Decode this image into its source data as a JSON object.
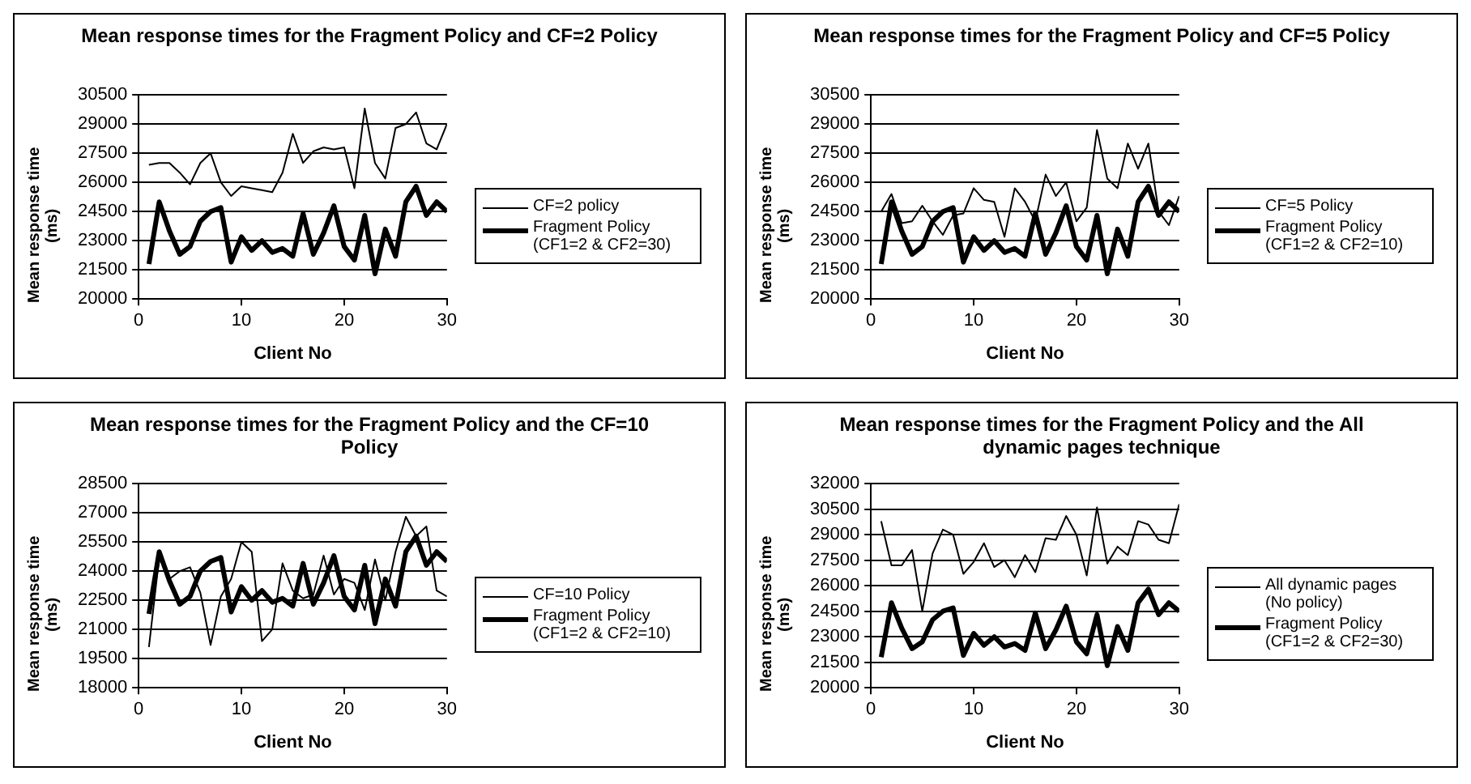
{
  "chart_data": [
    {
      "type": "line",
      "title": "Mean response times for the Fragment Policy and CF=2 Policy",
      "xlabel": "Client No",
      "ylabel": "Mean response time (ms)",
      "x": [
        1,
        2,
        3,
        4,
        5,
        6,
        7,
        8,
        9,
        10,
        11,
        12,
        13,
        14,
        15,
        16,
        17,
        18,
        19,
        20,
        21,
        22,
        23,
        24,
        25,
        26,
        27,
        28,
        29,
        30
      ],
      "xlim": [
        0,
        30
      ],
      "xticks": [
        0,
        10,
        20,
        30
      ],
      "ylim": [
        20000,
        30500
      ],
      "yticks": [
        20000,
        21500,
        23000,
        24500,
        26000,
        27500,
        29000,
        30500
      ],
      "grid": "y",
      "legend": "right",
      "marker": "none",
      "series": [
        {
          "name": "CF=2 policy",
          "color": "#000000",
          "values": [
            26900,
            27000,
            27000,
            26500,
            25900,
            27000,
            27500,
            26000,
            25300,
            25800,
            25700,
            25600,
            25500,
            26500,
            28500,
            27000,
            27600,
            27800,
            27700,
            27800,
            25700,
            29800,
            27000,
            26200,
            28800,
            29000,
            29600,
            28000,
            27700,
            29000
          ]
        },
        {
          "name": "Fragment Policy (CF1=2 & CF2=30)",
          "color": "#000000",
          "values": [
            21800,
            25000,
            23500,
            22300,
            22700,
            24000,
            24500,
            24700,
            21900,
            23200,
            22500,
            23000,
            22400,
            22600,
            22200,
            24400,
            22300,
            23400,
            24800,
            22700,
            22000,
            24300,
            21300,
            23600,
            22200,
            25000,
            25800,
            24300,
            25000,
            24500
          ]
        }
      ]
    },
    {
      "type": "line",
      "title": "Mean response times for the Fragment Policy and CF=5 Policy",
      "xlabel": "Client No",
      "ylabel": "Mean response time (ms)",
      "x": [
        1,
        2,
        3,
        4,
        5,
        6,
        7,
        8,
        9,
        10,
        11,
        12,
        13,
        14,
        15,
        16,
        17,
        18,
        19,
        20,
        21,
        22,
        23,
        24,
        25,
        26,
        27,
        28,
        29,
        30
      ],
      "xlim": [
        0,
        30
      ],
      "xticks": [
        0,
        10,
        20,
        30
      ],
      "ylim": [
        20000,
        30500
      ],
      "yticks": [
        20000,
        21500,
        23000,
        24500,
        26000,
        27500,
        29000,
        30500
      ],
      "grid": "y",
      "legend": "right",
      "marker": "none",
      "series": [
        {
          "name": "CF=5 Policy",
          "color": "#000000",
          "values": [
            24500,
            25400,
            23900,
            24000,
            24800,
            24000,
            23300,
            24300,
            24400,
            25700,
            25100,
            25000,
            23200,
            25700,
            25000,
            24000,
            26400,
            25300,
            26000,
            24000,
            24700,
            28700,
            26200,
            25700,
            28000,
            26700,
            28000,
            24500,
            23800,
            25300
          ]
        },
        {
          "name": "Fragment Policy (CF1=2 & CF2=10)",
          "color": "#000000",
          "values": [
            21800,
            25000,
            23500,
            22300,
            22700,
            24000,
            24500,
            24700,
            21900,
            23200,
            22500,
            23000,
            22400,
            22600,
            22200,
            24400,
            22300,
            23400,
            24800,
            22700,
            22000,
            24300,
            21300,
            23600,
            22200,
            25000,
            25800,
            24300,
            25000,
            24500
          ]
        }
      ]
    },
    {
      "type": "line",
      "title": "Mean response times for the Fragment Policy and the CF=10 Policy",
      "xlabel": "Client No",
      "ylabel": "Mean response time (ms)",
      "x": [
        1,
        2,
        3,
        4,
        5,
        6,
        7,
        8,
        9,
        10,
        11,
        12,
        13,
        14,
        15,
        16,
        17,
        18,
        19,
        20,
        21,
        22,
        23,
        24,
        25,
        26,
        27,
        28,
        29,
        30
      ],
      "xlim": [
        0,
        30
      ],
      "xticks": [
        0,
        10,
        20,
        30
      ],
      "ylim": [
        18000,
        28500
      ],
      "yticks": [
        18000,
        19500,
        21000,
        22500,
        24000,
        25500,
        27000,
        28500
      ],
      "grid": "y",
      "legend": "right",
      "marker": "none",
      "series": [
        {
          "name": "CF=10 Policy",
          "color": "#000000",
          "values": [
            20100,
            24700,
            23600,
            24000,
            24200,
            22900,
            20200,
            22700,
            23600,
            25500,
            25000,
            20400,
            21000,
            24400,
            23000,
            22600,
            22800,
            24800,
            22800,
            23600,
            23400,
            22000,
            24600,
            22500,
            25000,
            26800,
            25800,
            26300,
            23000,
            22700
          ]
        },
        {
          "name": "Fragment Policy (CF1=2 & CF2=10)",
          "color": "#000000",
          "values": [
            21800,
            25000,
            23500,
            22300,
            22700,
            24000,
            24500,
            24700,
            21900,
            23200,
            22500,
            23000,
            22400,
            22600,
            22200,
            24400,
            22300,
            23400,
            24800,
            22700,
            22000,
            24300,
            21300,
            23600,
            22200,
            25000,
            25800,
            24300,
            25000,
            24500
          ]
        }
      ]
    },
    {
      "type": "line",
      "title": "Mean response times for the Fragment Policy and the All dynamic pages technique",
      "xlabel": "Client No",
      "ylabel": "Mean response time (ms)",
      "x": [
        1,
        2,
        3,
        4,
        5,
        6,
        7,
        8,
        9,
        10,
        11,
        12,
        13,
        14,
        15,
        16,
        17,
        18,
        19,
        20,
        21,
        22,
        23,
        24,
        25,
        26,
        27,
        28,
        29,
        30
      ],
      "xlim": [
        0,
        30
      ],
      "xticks": [
        0,
        10,
        20,
        30
      ],
      "ylim": [
        20000,
        32000
      ],
      "yticks": [
        20000,
        21500,
        23000,
        24500,
        26000,
        27500,
        29000,
        30500,
        32000
      ],
      "grid": "y",
      "legend": "right",
      "marker": "none",
      "series": [
        {
          "name": "All dynamic pages (No policy)",
          "color": "#000000",
          "values": [
            29800,
            27200,
            27200,
            28100,
            24500,
            27900,
            29300,
            29000,
            26700,
            27400,
            28500,
            27100,
            27500,
            26500,
            27800,
            26800,
            28800,
            28700,
            30100,
            29000,
            26600,
            30600,
            27300,
            28300,
            27800,
            29800,
            29600,
            28700,
            28500,
            30800
          ]
        },
        {
          "name": "Fragment Policy (CF1=2 & CF2=30)",
          "color": "#000000",
          "values": [
            21800,
            25000,
            23500,
            22300,
            22700,
            24000,
            24500,
            24700,
            21900,
            23200,
            22500,
            23000,
            22400,
            22600,
            22200,
            24400,
            22300,
            23400,
            24800,
            22700,
            22000,
            24300,
            21300,
            23600,
            22200,
            25000,
            25800,
            24300,
            25000,
            24500
          ]
        }
      ]
    }
  ]
}
